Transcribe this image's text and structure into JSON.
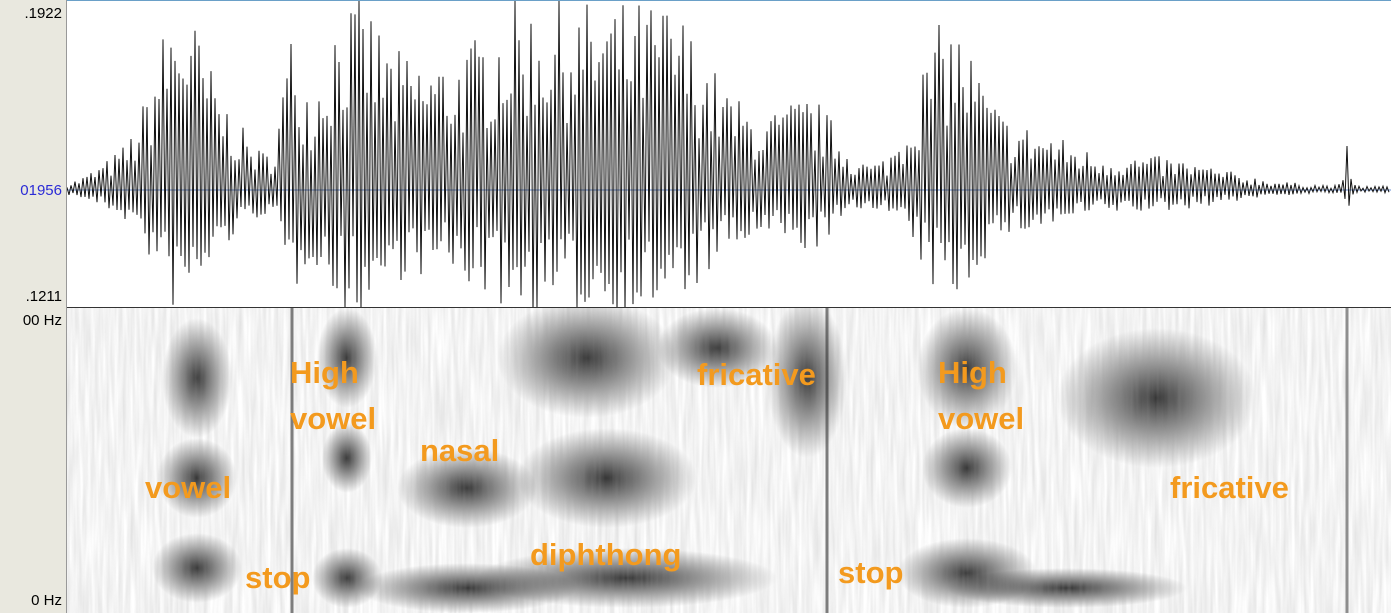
{
  "axis_labels": {
    "wave_top": ".1922",
    "wave_mid": "01956",
    "wave_bottom": ".1211",
    "freq_top": "00 Hz",
    "freq_bottom": "0 Hz"
  },
  "annotations": [
    {
      "lines": [
        "vowel"
      ]
    },
    {
      "lines": [
        "stop"
      ]
    },
    {
      "lines": [
        "High",
        "vowel"
      ]
    },
    {
      "lines": [
        "nasal"
      ]
    },
    {
      "lines": [
        "diphthong"
      ]
    },
    {
      "lines": [
        "fricative"
      ]
    },
    {
      "lines": [
        "stop"
      ]
    },
    {
      "lines": [
        "High",
        "vowel"
      ]
    },
    {
      "lines": [
        "fricative"
      ]
    }
  ]
}
